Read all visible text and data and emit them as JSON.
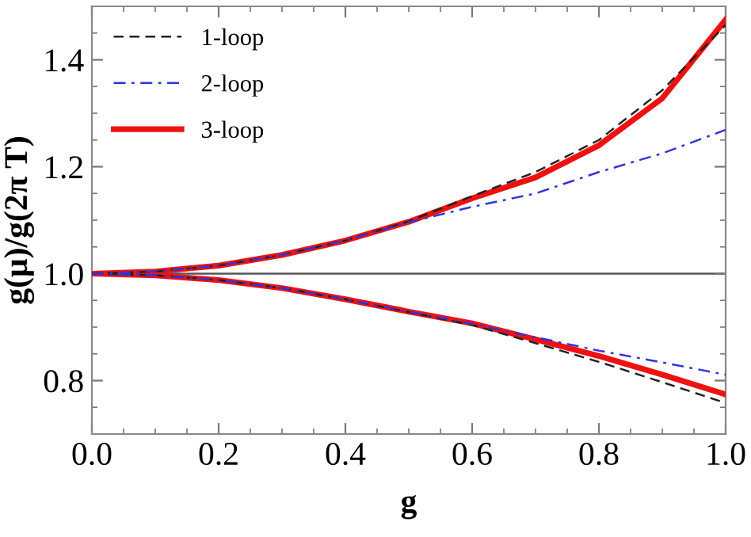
{
  "chart_data": {
    "type": "line",
    "xlabel": "g",
    "ylabel": "g(μ)/g(2π T)",
    "xlim": [
      0.0,
      1.0
    ],
    "ylim": [
      0.7,
      1.5
    ],
    "xticks": [
      {
        "value": 0.0,
        "label": "0.0"
      },
      {
        "value": 0.2,
        "label": "0.2"
      },
      {
        "value": 0.4,
        "label": "0.4"
      },
      {
        "value": 0.6,
        "label": "0.6"
      },
      {
        "value": 0.8,
        "label": "0.8"
      },
      {
        "value": 1.0,
        "label": "1.0"
      }
    ],
    "yticks": [
      0.8,
      {
        "value": 1.0,
        "label": "1.0"
      },
      1.2,
      1.4
    ],
    "x": [
      0,
      0.1,
      0.2,
      0.3,
      0.4,
      0.5,
      0.6,
      0.7,
      0.8,
      0.9,
      1.0
    ],
    "legend": "top left",
    "grid": false,
    "marker": "none",
    "ref_lines": [
      {
        "axis": "y",
        "value": 1.0,
        "color": "#555555"
      }
    ],
    "series": [
      {
        "name": "1-loop",
        "color": "#222222",
        "line_style": "dashed",
        "values": [
          1.0,
          1.004,
          1.015,
          1.035,
          1.062,
          1.098,
          1.145,
          1.19,
          1.25,
          1.343,
          1.465
        ]
      },
      {
        "name": "2-loop",
        "color": "#3333dd",
        "line_style": "dashdot",
        "values": [
          1.0,
          1.004,
          1.015,
          1.035,
          1.062,
          1.096,
          1.125,
          1.15,
          1.19,
          1.225,
          1.269
        ]
      },
      {
        "name": "3-loop",
        "color": "#ee1111",
        "line_style": "solid",
        "values": [
          1.0,
          1.004,
          1.015,
          1.035,
          1.062,
          1.097,
          1.141,
          1.18,
          1.24,
          1.328,
          1.475
        ]
      },
      {
        "color": "#222222",
        "line_style": "dashed",
        "values": [
          1.0,
          0.997,
          0.988,
          0.973,
          0.952,
          0.928,
          0.904,
          0.87,
          0.835,
          0.797,
          0.758
        ]
      },
      {
        "color": "#3333dd",
        "line_style": "dashdot",
        "values": [
          1.0,
          0.997,
          0.988,
          0.973,
          0.952,
          0.929,
          0.906,
          0.881,
          0.856,
          0.834,
          0.811
        ]
      },
      {
        "color": "#ee1111",
        "line_style": "solid",
        "values": [
          1.0,
          0.997,
          0.988,
          0.973,
          0.952,
          0.929,
          0.907,
          0.877,
          0.846,
          0.811,
          0.774
        ]
      }
    ]
  }
}
